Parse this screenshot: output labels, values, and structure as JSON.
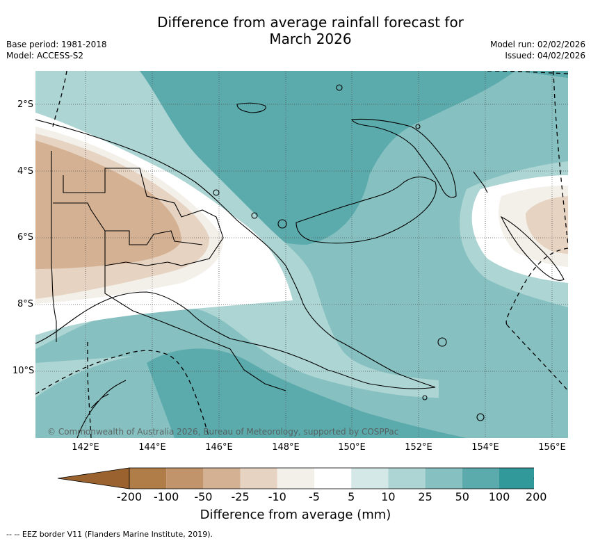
{
  "title_line1": "Difference from average rainfall forecast for",
  "title_line2": "March 2026",
  "base_period": "Base period: 1981-2018",
  "model": "Model: ACCESS-S2",
  "model_run": "Model run: 02/02/2026",
  "issued": "Issued: 04/02/2026",
  "copyright": "© Commonwealth of Australia 2026, Bureau of Meteorology, supported by COSPPac",
  "lon_labels": [
    "142°E",
    "144°E",
    "146°E",
    "148°E",
    "150°E",
    "152°E",
    "154°E",
    "156°E"
  ],
  "lat_labels": [
    "2°S",
    "4°S",
    "6°S",
    "8°S",
    "10°S"
  ],
  "colorbar": {
    "labels": [
      "-200",
      "-100",
      "-50",
      "-25",
      "-10",
      "-5",
      "5",
      "10",
      "25",
      "50",
      "100",
      "200"
    ],
    "colors": [
      "#9a622f",
      "#b07c48",
      "#c1946b",
      "#d4b193",
      "#e6d3c1",
      "#f3efe9",
      "#ffffff",
      "#d4e8e7",
      "#add5d4",
      "#86c0c0",
      "#5baaac",
      "#32999a",
      "#2a7878"
    ],
    "title": "Difference from average (mm)"
  },
  "eez_legend": "-- -- EEZ border V11 (Flanders Marine Institute, 2019)."
}
